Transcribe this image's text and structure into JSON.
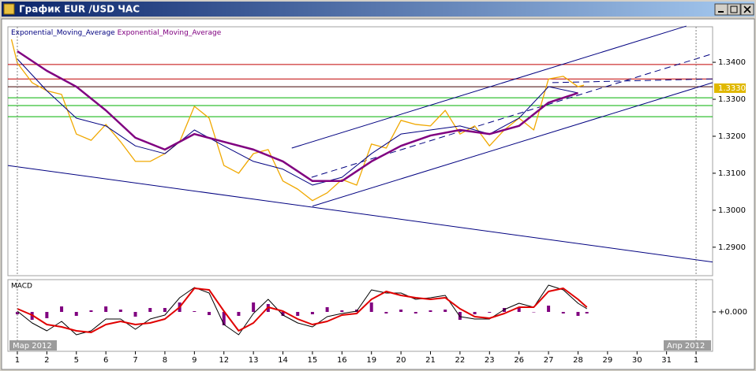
{
  "window": {
    "title": "График EUR /USD  ЧАС"
  },
  "chart_data": [
    {
      "type": "line",
      "xlim": [
        -0.32,
        23.56
      ],
      "ylim": [
        1.2823,
        1.3496
      ],
      "yticks": [
        {
          "value": 1.29,
          "label": "1.2900"
        },
        {
          "value": 1.3,
          "label": "1.3000"
        },
        {
          "value": 1.31,
          "label": "1.3100"
        },
        {
          "value": 1.32,
          "label": "1.3200"
        },
        {
          "value": 1.33,
          "label": "1.3300"
        },
        {
          "value": 1.34,
          "label": "1.3400"
        }
      ],
      "last_price": {
        "value": 1.333,
        "label": "1.3330"
      },
      "x": [
        -0.2,
        0,
        0.5,
        1,
        1.5,
        2,
        2.5,
        3,
        3.5,
        4,
        4.5,
        5,
        5.5,
        6,
        6.5,
        7,
        7.5,
        8,
        8.5,
        9,
        9.5,
        10,
        10.5,
        11,
        11.5,
        12,
        12.5,
        13,
        13.5,
        14,
        14.5,
        15,
        15.5,
        16,
        16.5,
        17,
        17.5,
        18,
        18.5,
        19,
        19.2
      ],
      "series": [
        {
          "color": "#f0a800",
          "width": 1.3,
          "values": [
            1.3462,
            1.3398,
            1.3345,
            1.3323,
            1.3313,
            1.3206,
            1.3189,
            1.3232,
            1.3185,
            1.3132,
            1.3132,
            1.3153,
            1.3185,
            1.3281,
            1.3249,
            1.3121,
            1.31,
            1.3153,
            1.3164,
            1.3079,
            1.3057,
            1.3026,
            1.3047,
            1.3083,
            1.3068,
            1.3179,
            1.3168,
            1.3243,
            1.3232,
            1.3228,
            1.327,
            1.3206,
            1.3228,
            1.3174,
            1.3217,
            1.3249,
            1.3217,
            1.3355,
            1.3362,
            1.3334,
            1.3338
          ]
        },
        {
          "name": "Exponential_Moving_Average",
          "color": "#000080",
          "width": 1,
          "x": [
            0,
            1,
            2,
            3,
            4,
            5,
            6,
            7,
            8,
            9,
            10,
            11,
            12,
            13,
            14,
            15,
            16,
            17,
            18,
            19
          ],
          "values": [
            1.3409,
            1.3323,
            1.3249,
            1.3228,
            1.3174,
            1.3153,
            1.3217,
            1.3174,
            1.3132,
            1.3111,
            1.3068,
            1.3089,
            1.3153,
            1.3206,
            1.3217,
            1.3228,
            1.3206,
            1.3249,
            1.3334,
            1.3317
          ]
        },
        {
          "name": "Exponential_Moving_Average",
          "color": "#800080",
          "width": 2.5,
          "x": [
            0,
            1,
            2,
            3,
            4,
            5,
            6,
            7,
            8,
            9,
            10,
            11,
            12,
            13,
            14,
            15,
            16,
            17,
            18,
            19
          ],
          "values": [
            1.343,
            1.3377,
            1.3334,
            1.327,
            1.3196,
            1.3164,
            1.3206,
            1.3185,
            1.3164,
            1.3132,
            1.3079,
            1.3079,
            1.3132,
            1.3174,
            1.3202,
            1.3217,
            1.3206,
            1.3228,
            1.3291,
            1.3317
          ]
        }
      ],
      "levels": [
        {
          "value": 1.3394,
          "color": "#c00000"
        },
        {
          "value": 1.3355,
          "color": "#c00000"
        },
        {
          "value": 1.3334,
          "color": "#400000"
        },
        {
          "value": 1.3304,
          "color": "#00b000"
        },
        {
          "value": 1.3283,
          "color": "#00b000"
        },
        {
          "value": 1.3253,
          "color": "#00b000"
        }
      ],
      "trend_lines": [
        {
          "x": [
            -0.32,
            23.56
          ],
          "y": [
            1.3121,
            1.286
          ],
          "color": "#000080",
          "dashed": false
        },
        {
          "x": [
            9.3,
            22.67
          ],
          "y": [
            1.3168,
            1.3498
          ],
          "color": "#000080",
          "dashed": false
        },
        {
          "x": [
            10.0,
            23.56
          ],
          "y": [
            1.3011,
            1.3345
          ],
          "color": "#000080",
          "dashed": false
        },
        {
          "x": [
            9.97,
            23.56
          ],
          "y": [
            1.3089,
            1.3423
          ],
          "color": "#000080",
          "dashed": true
        },
        {
          "x": [
            18.13,
            23.56
          ],
          "y": [
            1.3345,
            1.3355
          ],
          "color": "#000080",
          "dashed": true
        }
      ]
    },
    {
      "type": "line",
      "title": "MACD",
      "xlim": [
        -0.32,
        23.56
      ],
      "ylim": [
        -0.005,
        0.0041
      ],
      "yticks": [
        {
          "value": 0,
          "label": "+0.000"
        }
      ],
      "xticks": [
        {
          "value": 0,
          "label": "1"
        },
        {
          "value": 1,
          "label": "2"
        },
        {
          "value": 2,
          "label": "5"
        },
        {
          "value": 3,
          "label": "6"
        },
        {
          "value": 4,
          "label": "7"
        },
        {
          "value": 5,
          "label": "8"
        },
        {
          "value": 6,
          "label": "9"
        },
        {
          "value": 7,
          "label": "12"
        },
        {
          "value": 8,
          "label": "13"
        },
        {
          "value": 9,
          "label": "14"
        },
        {
          "value": 10,
          "label": "15"
        },
        {
          "value": 11,
          "label": "16"
        },
        {
          "value": 12,
          "label": "19"
        },
        {
          "value": 13,
          "label": "20"
        },
        {
          "value": 14,
          "label": "21"
        },
        {
          "value": 15,
          "label": "22"
        },
        {
          "value": 16,
          "label": "23"
        },
        {
          "value": 17,
          "label": "26"
        },
        {
          "value": 18,
          "label": "27"
        },
        {
          "value": 19,
          "label": "28"
        },
        {
          "value": 20,
          "label": "29"
        },
        {
          "value": 21,
          "label": "30"
        },
        {
          "value": 22,
          "label": "31"
        },
        {
          "value": 23,
          "label": "1"
        }
      ],
      "period_labels": [
        {
          "value": 0,
          "label": "Мар 2012"
        },
        {
          "value": 23,
          "label": "Апр 2012"
        }
      ],
      "x": [
        0,
        0.5,
        1,
        1.5,
        2,
        2.5,
        3,
        3.5,
        4,
        4.5,
        5,
        5.5,
        6,
        6.5,
        7,
        7.5,
        8,
        8.5,
        9,
        9.5,
        10,
        10.5,
        11,
        11.5,
        12,
        12.5,
        13,
        13.5,
        14,
        14.5,
        15,
        15.5,
        16,
        16.5,
        17,
        17.5,
        18,
        18.5,
        19,
        19.3
      ],
      "series": [
        {
          "type": "bar",
          "color": "#800080",
          "values": [
            -0.0003,
            -0.001,
            -0.0008,
            0.0007,
            -0.0005,
            0.0002,
            0.0007,
            0.0003,
            -0.0006,
            0.0005,
            0.0005,
            0.0012,
            0.0001,
            -0.0004,
            -0.0017,
            -0.0005,
            0.0012,
            0.001,
            -0.0005,
            -0.0005,
            -0.0003,
            0.0006,
            0.0002,
            0.0003,
            0.0012,
            -0.0002,
            0.0003,
            -0.0002,
            0.0002,
            0.0003,
            -0.001,
            -0.0003,
            -0.0001,
            0.0005,
            0.0005,
            0,
            0.0008,
            -0.0002,
            -0.0005,
            -0.0002
          ]
        },
        {
          "color": "#000000",
          "width": 1,
          "values": [
            0.0001,
            -0.0014,
            -0.0024,
            -0.0012,
            -0.0029,
            -0.0024,
            -0.0009,
            -0.0009,
            -0.0022,
            -0.0009,
            -0.0004,
            0.0018,
            0.0031,
            0.0024,
            -0.0016,
            -0.0029,
            -0.0002,
            0.0016,
            -0.0004,
            -0.0014,
            -0.0019,
            -0.0006,
            -0.0002,
            0.0001,
            0.0028,
            0.0024,
            0.0024,
            0.0016,
            0.0018,
            0.0021,
            -0.0006,
            -0.0009,
            -0.0009,
            0.0003,
            0.0011,
            0.0006,
            0.0034,
            0.0028,
            0.0011,
            0.0004
          ]
        },
        {
          "color": "#e00000",
          "width": 2,
          "values": [
            0.0004,
            -0.0004,
            -0.0016,
            -0.0019,
            -0.0024,
            -0.0026,
            -0.0016,
            -0.0012,
            -0.0016,
            -0.0014,
            -0.0009,
            0.0006,
            0.003,
            0.0028,
            0.0001,
            -0.0024,
            -0.0014,
            0.0006,
            0.0001,
            -0.0009,
            -0.0016,
            -0.0012,
            -0.0004,
            -0.0002,
            0.0016,
            0.0026,
            0.0021,
            0.0018,
            0.0016,
            0.0018,
            0.0004,
            -0.0006,
            -0.0008,
            -0.0002,
            0.0006,
            0.0006,
            0.0026,
            0.003,
            0.0016,
            0.0006
          ]
        }
      ]
    }
  ]
}
